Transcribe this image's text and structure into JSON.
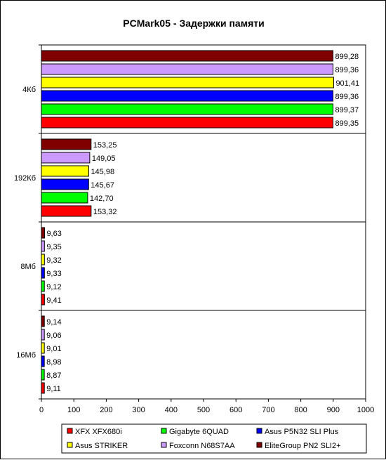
{
  "chart_data": {
    "type": "bar",
    "orientation": "horizontal",
    "title": "PCMark05 - Задержки памяти",
    "categories": [
      "4Кб",
      "192Кб",
      "8Мб",
      "16Мб"
    ],
    "series": [
      {
        "name": "XFX XFX680i",
        "color": "#ff0000",
        "values": [
          899.35,
          153.32,
          9.41,
          9.11
        ],
        "labels": [
          "899,35",
          "153,32",
          "9,41",
          "9,11"
        ]
      },
      {
        "name": "Gigabyte 6QUAD",
        "color": "#00ff00",
        "values": [
          899.37,
          142.7,
          9.12,
          8.87
        ],
        "labels": [
          "899,37",
          "142,70",
          "9,12",
          "8,87"
        ]
      },
      {
        "name": "Asus P5N32 SLI Plus",
        "color": "#0000ff",
        "values": [
          899.36,
          145.67,
          9.33,
          8.98
        ],
        "labels": [
          "899,36",
          "145,67",
          "9,33",
          "8,98"
        ]
      },
      {
        "name": "Asus STRIKER",
        "color": "#ffff00",
        "values": [
          901.41,
          145.98,
          9.32,
          9.01
        ],
        "labels": [
          "901,41",
          "145,98",
          "9,32",
          "9,01"
        ]
      },
      {
        "name": "Foxconn N68S7AA",
        "color": "#cc99ff",
        "values": [
          899.36,
          149.05,
          9.35,
          9.06
        ],
        "labels": [
          "899,36",
          "149,05",
          "9,35",
          "9,06"
        ]
      },
      {
        "name": "EliteGroup PN2 SLI2+",
        "color": "#800000",
        "values": [
          899.28,
          153.25,
          9.63,
          9.14
        ],
        "labels": [
          "899,28",
          "153,25",
          "9,63",
          "9,14"
        ]
      }
    ],
    "xlim": [
      0,
      1000
    ],
    "xticks": [
      "0",
      "100",
      "200",
      "300",
      "400",
      "500",
      "600",
      "700",
      "800",
      "900",
      "1000"
    ],
    "grid": "horizontal separators between categories",
    "legend_position": "bottom"
  }
}
